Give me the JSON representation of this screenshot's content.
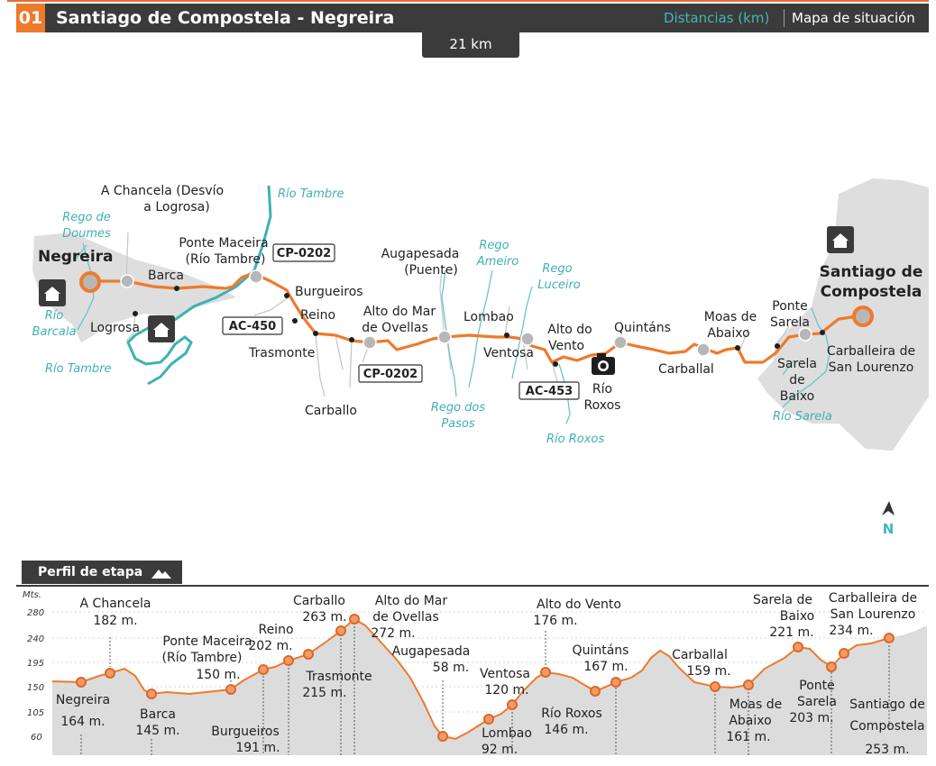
{
  "header": {
    "stage_number": "01",
    "title": "Santiago de Compostela - Negreira",
    "tab_distances": "Distancias (km)",
    "tab_map": "Mapa de situación"
  },
  "distance_badge": "21 km",
  "map": {
    "places": {
      "negreira": "Negreira",
      "a_chancela_1": "A Chancela (Desvío",
      "a_chancela_2": "a Logrosa)",
      "barca": "Barca",
      "logrosa": "Logrosa",
      "ponte_maceira_1": "Ponte Maceira",
      "ponte_maceira_2": "(Río Tambre)",
      "burgueiros": "Burgueiros",
      "reino": "Reino",
      "trasmonte": "Trasmonte",
      "carballo": "Carballo",
      "alto_ovellas_1": "Alto do Mar",
      "alto_ovellas_2": "de Ovellas",
      "augapesada_1": "Augapesada",
      "augapesada_2": "(Puente)",
      "lombao": "Lombao",
      "ventosa": "Ventosa",
      "alto_vento_1": "Alto do",
      "alto_vento_2": "Vento",
      "rio_roxos_1": "Río",
      "rio_roxos_2": "Roxos",
      "quintans": "Quintáns",
      "carballal": "Carballal",
      "moas_1": "Moas de",
      "moas_2": "Abaixo",
      "ponte_sarela_1": "Ponte",
      "ponte_sarela_2": "Sarela",
      "sarela_baixo_1": "Sarela",
      "sarela_baixo_2": "de",
      "sarela_baixo_3": "Baixo",
      "carballeira_1": "Carballeira de",
      "carballeira_2": "San Lourenzo",
      "santiago_1": "Santiago de",
      "santiago_2": "Compostela"
    },
    "rivers": {
      "rio_tambre_top": "Río Tambre",
      "rego_doumes_1": "Rego de",
      "rego_doumes_2": "Doumes",
      "rio_barcala_1": "Río",
      "rio_barcala_2": "Barcala",
      "rio_tambre_bottom": "Río Tambre",
      "rego_ameiro_1": "Rego",
      "rego_ameiro_2": "Ameiro",
      "rego_luceiro_1": "Rego",
      "rego_luceiro_2": "Luceiro",
      "rego_pasos_1": "Rego dos",
      "rego_pasos_2": "Pasos",
      "rio_roxos": "Río Roxos",
      "rio_sarela": "Río Sarela"
    },
    "roads": {
      "cp0202_top": "CP-0202",
      "ac450": "AC-450",
      "cp0202_bottom": "CP-0202",
      "ac453": "AC-453"
    },
    "compass": "N"
  },
  "profile": {
    "tab_label": "Perfil de etapa",
    "axis_unit": "Mts.",
    "y_ticks": [
      "280",
      "240",
      "195",
      "150",
      "105",
      "60"
    ],
    "labels": {
      "negreira_1": "Negreira",
      "negreira_2": "164 m.",
      "achancela_1": "A Chancela",
      "achancela_2": "182 m.",
      "barca_1": "Barca",
      "barca_2": "145 m.",
      "pmaceira_1": "Ponte Maceira",
      "pmaceira_2": "(Río Tambre)",
      "pmaceira_3": "150 m.",
      "burgueiros_1": "Burgueiros",
      "burgueiros_2": "191 m.",
      "reino_1": "Reino",
      "reino_2": "202 m.",
      "carballo_1": "Carballo",
      "carballo_2": "263 m.",
      "trasmonte_1": "Trasmonte",
      "trasmonte_2": "215 m.",
      "ovellas_1": "Alto do Mar",
      "ovellas_2": "de Ovellas",
      "ovellas_3": "272 m.",
      "augapesada_1": "Augapesada",
      "augapesada_2": "58 m.",
      "lombao_1": "Lombao",
      "lombao_2": "92 m.",
      "ventosa_1": "Ventosa",
      "ventosa_2": "120 m.",
      "altovento_1": "Alto do Vento",
      "altovento_2": "176 m.",
      "rioroxos_1": "Río Roxos",
      "rioroxos_2": "146 m.",
      "quintans_1": "Quintáns",
      "quintans_2": "167 m.",
      "carballal_1": "Carballal",
      "carballal_2": "159 m.",
      "moas_1": "Moas de",
      "moas_2": "Abaixo",
      "moas_3": "161 m.",
      "sbaixo_1": "Sarela de",
      "sbaixo_2": "Baixo",
      "sbaixo_3": "221 m.",
      "psarela_1": "Ponte",
      "psarela_2": "Sarela",
      "psarela_3": "203 m.",
      "carballeira_1": "Carballeira de",
      "carballeira_2": "San Lourenzo",
      "carballeira_3": "234 m.",
      "santiago_1": "Santiago de",
      "santiago_2": "Compostela",
      "santiago_3": "253 m."
    }
  }
}
